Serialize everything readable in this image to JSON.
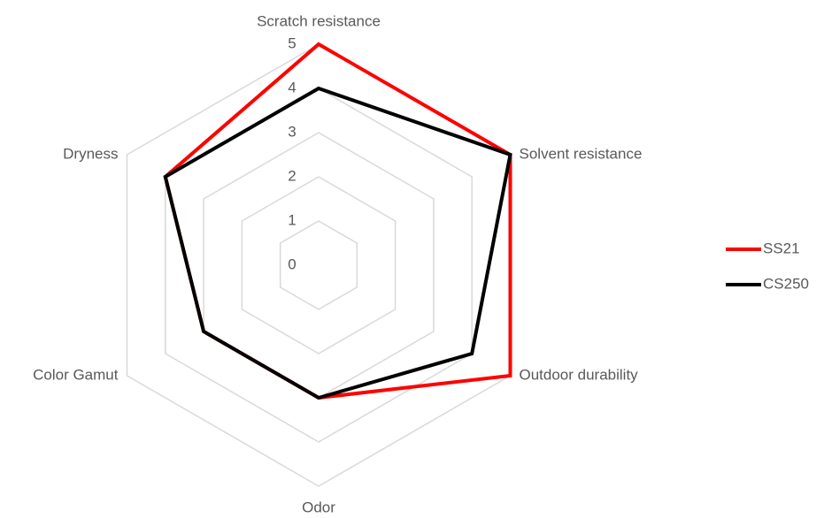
{
  "chart_data": {
    "type": "radar",
    "categories": [
      "Scratch resistance",
      "Solvent resistance",
      "Outdoor durability",
      "Odor",
      "Color Gamut",
      "Dryness"
    ],
    "series": [
      {
        "name": "SS21",
        "color": "#ff0000",
        "values": [
          5,
          5,
          5,
          3,
          3,
          4
        ]
      },
      {
        "name": "CS250",
        "color": "#000000",
        "values": [
          4,
          5,
          4,
          3,
          3,
          4
        ]
      }
    ],
    "rlim": [
      0,
      5
    ],
    "rticks": [
      0,
      1,
      2,
      3,
      4,
      5
    ],
    "grid": true,
    "legend": "right"
  }
}
